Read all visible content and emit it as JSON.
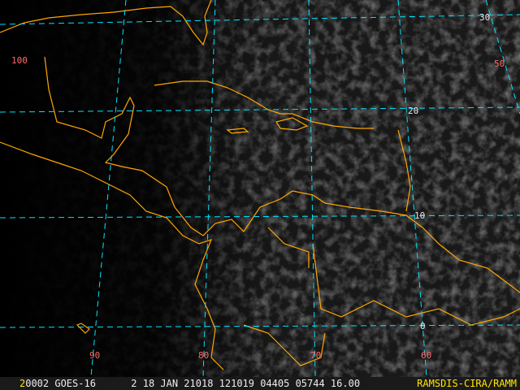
{
  "image": {
    "type": "GOES-16 visible satellite image",
    "colors": {
      "coastline": "#ffa500",
      "grid": "#00e5ff",
      "longitude_label": "#ff6a6a",
      "latitude_label": "#e8e8e8",
      "credit": "#ffe600"
    }
  },
  "grid_labels": {
    "latitudes": [
      "30",
      "20",
      "10",
      "0"
    ],
    "longitudes": [
      "100",
      "50",
      "90",
      "80",
      "70",
      "60"
    ]
  },
  "status_bar": {
    "frame": "2",
    "info": "0002 GOES-16      2 18 JAN 21018 121019 04405 05744 16.00",
    "credit": "RAMSDIS-CIRA/RAMM"
  }
}
